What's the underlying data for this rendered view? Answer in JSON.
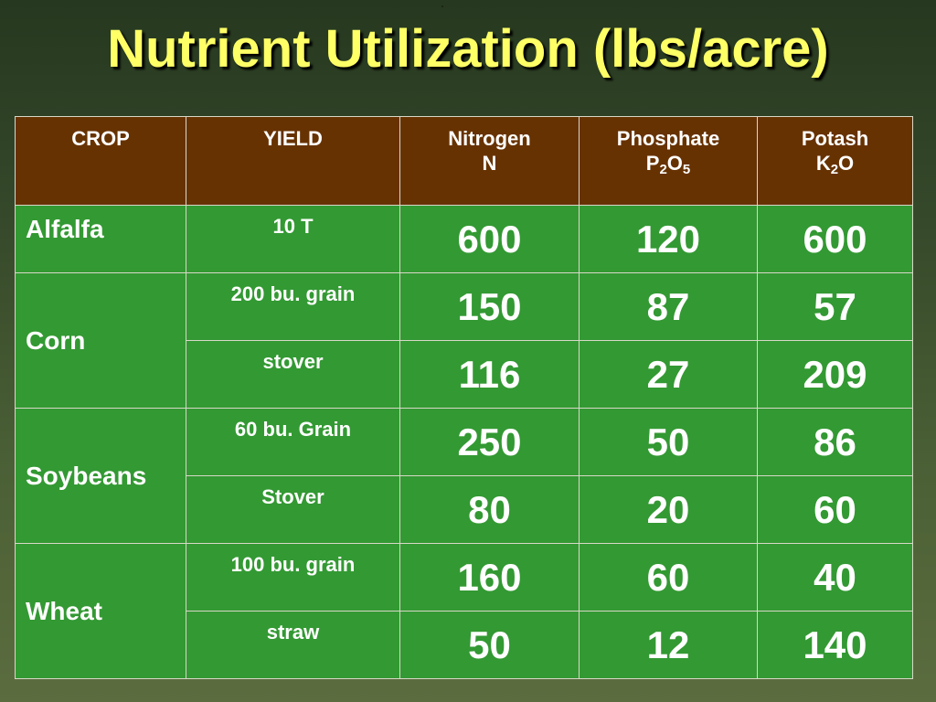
{
  "title": "Nutrient Utilization (lbs/acre)",
  "headers": {
    "crop": "CROP",
    "yield": "YIELD",
    "nitrogen": {
      "line1": "Nitrogen",
      "line2": "N"
    },
    "phosphate": {
      "line1": "Phosphate",
      "formula": [
        "P",
        "2",
        "O",
        "5"
      ]
    },
    "potash": {
      "line1": "Potash",
      "formula": [
        "K",
        "2",
        "O"
      ]
    }
  },
  "crops": [
    {
      "name": "Alfalfa",
      "rows": [
        {
          "yield": "10 T",
          "n": "600",
          "p": "120",
          "k": "600"
        }
      ]
    },
    {
      "name": "Corn",
      "rows": [
        {
          "yield": "200 bu. grain",
          "n": "150",
          "p": "87",
          "k": "57"
        },
        {
          "yield": "stover",
          "n": "116",
          "p": "27",
          "k": "209"
        }
      ]
    },
    {
      "name": "Soybeans",
      "rows": [
        {
          "yield": "60 bu. Grain",
          "n": "250",
          "p": "50",
          "k": "86"
        },
        {
          "yield": "Stover",
          "n": "80",
          "p": "20",
          "k": "60"
        }
      ]
    },
    {
      "name": "Wheat",
      "rows": [
        {
          "yield": "100 bu. grain",
          "n": "160",
          "p": "60",
          "k": "40"
        },
        {
          "yield": "straw",
          "n": "50",
          "p": "12",
          "k": "140"
        }
      ]
    }
  ]
}
